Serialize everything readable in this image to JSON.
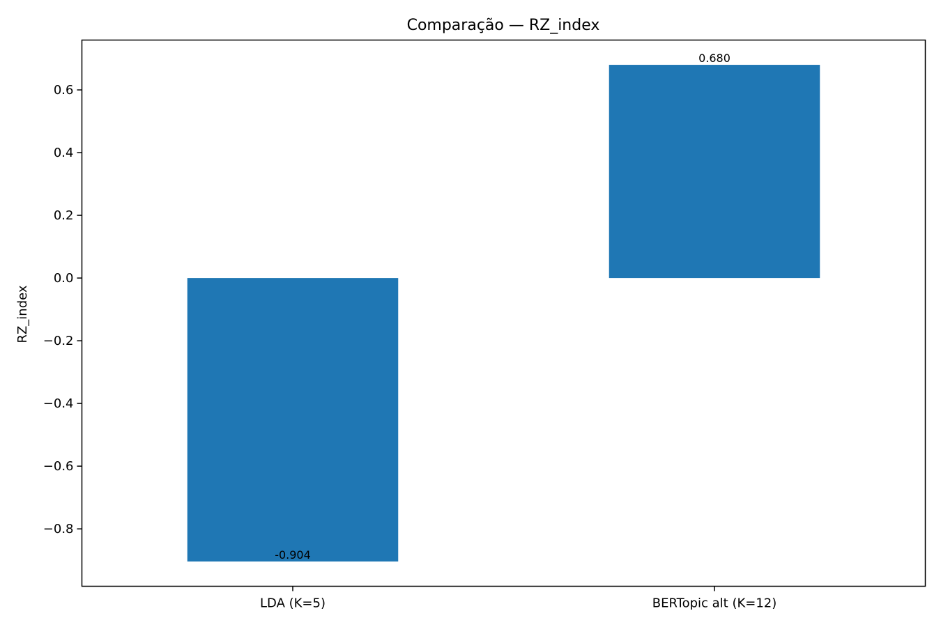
{
  "chart_data": {
    "type": "bar",
    "title": "Comparação — RZ_index",
    "xlabel": "",
    "ylabel": "RZ_index",
    "categories": [
      "LDA (K=5)",
      "BERTopic alt (K=12)"
    ],
    "values": [
      -0.904,
      0.68
    ],
    "value_labels": [
      "-0.904",
      "0.680"
    ],
    "ylim": [
      -0.983,
      0.759
    ],
    "yticks": [
      0.6,
      0.4,
      0.2,
      0.0,
      -0.2,
      -0.4,
      -0.6,
      -0.8
    ],
    "ytick_labels": [
      "0.6",
      "0.4",
      "0.2",
      "0.0",
      "−0.2",
      "−0.4",
      "−0.6",
      "−0.8"
    ],
    "grid": false,
    "legend": "none",
    "bar_color": "#1f77b4"
  }
}
